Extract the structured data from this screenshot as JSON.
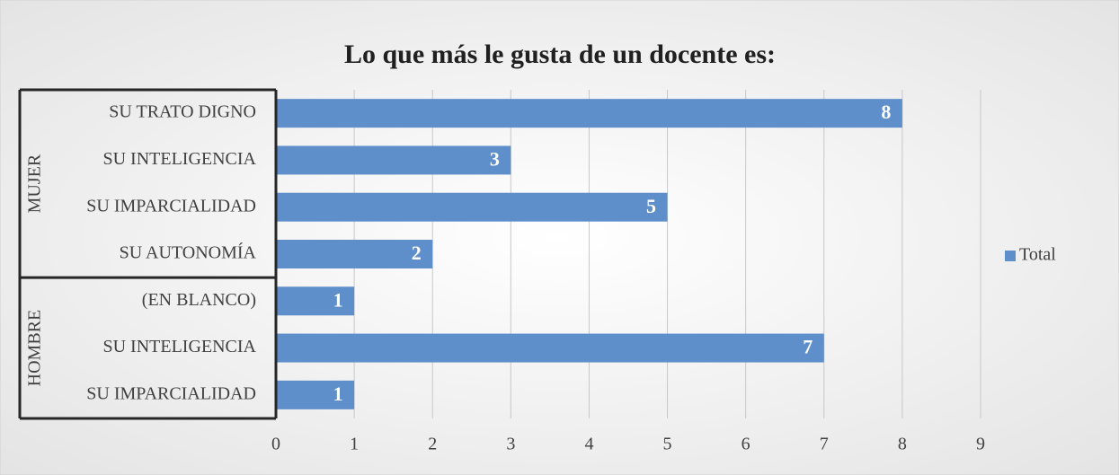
{
  "chart_data": {
    "type": "bar",
    "orientation": "horizontal",
    "title": "Lo que más le gusta de un docente es:",
    "groups": [
      {
        "name": "MUJER",
        "categories": [
          "SU TRATO DIGNO",
          "SU INTELIGENCIA",
          "SU IMPARCIALIDAD",
          "SU AUTONOMÍA"
        ],
        "values": [
          8,
          3,
          5,
          2
        ]
      },
      {
        "name": "HOMBRE",
        "categories": [
          "(EN BLANCO)",
          "SU INTELIGENCIA",
          "SU IMPARCIALIDAD"
        ],
        "values": [
          1,
          7,
          1
        ]
      }
    ],
    "legend": "Total",
    "legend_position": "right",
    "color": "#5f8fcb",
    "xlim": [
      0,
      9
    ],
    "xticks": [
      0,
      1,
      2,
      3,
      4,
      5,
      6,
      7,
      8,
      9
    ],
    "grid": true
  }
}
